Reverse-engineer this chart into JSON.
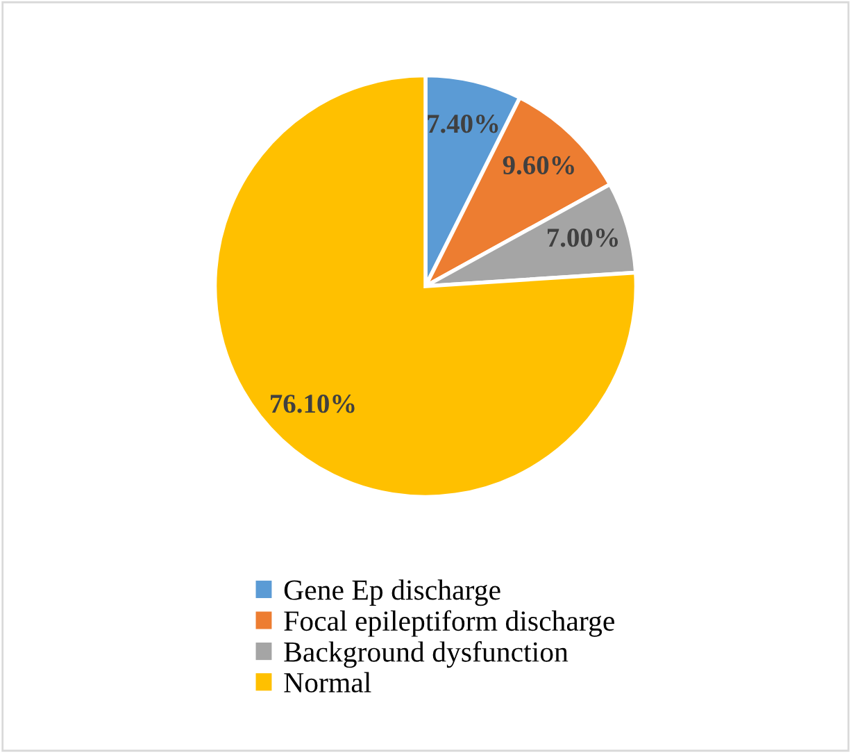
{
  "chart_data": {
    "type": "pie",
    "categories": [
      "Gene Ep discharge",
      "Focal epileptiform discharge",
      "Background dysfunction",
      "Normal"
    ],
    "values": [
      7.4,
      9.6,
      7.0,
      76.1
    ],
    "colors": [
      "#5b9bd5",
      "#ed7d31",
      "#a5a5a5",
      "#ffc000"
    ],
    "value_labels": [
      "7.40%",
      "9.60%",
      "7.00%",
      "76.10%"
    ],
    "legend": "bottom"
  }
}
